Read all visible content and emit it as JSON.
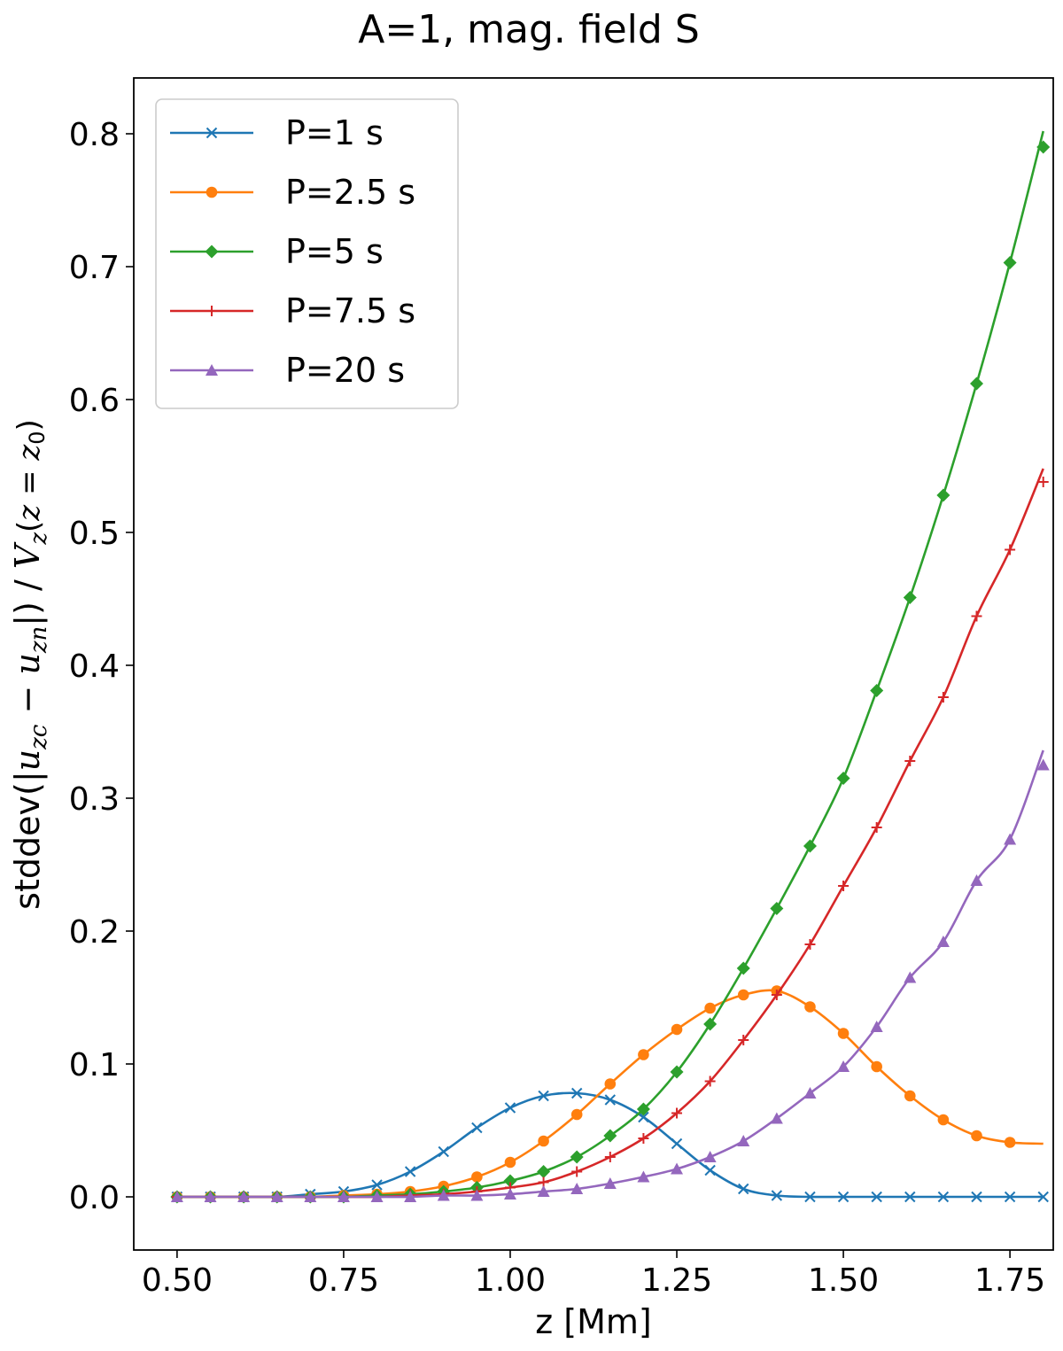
{
  "chart_data": {
    "type": "line",
    "title": "A=1, mag. field S",
    "xlabel": "z [Mm]",
    "ylabel": "stddev(|u_zc − u_zn|) / V_z(z=z0)",
    "ylabel_parts": {
      "prefix": "stddev(|",
      "u1": "u",
      "sub1": "zc",
      "minus": " − ",
      "u2": "u",
      "sub2": "zn",
      "mid": "|) / ",
      "V": "V",
      "subV": "z",
      "arg_open": "(",
      "z": "z",
      "eq": " = ",
      "z0": "z",
      "sub0": "0",
      "arg_close": ")"
    },
    "xlim": [
      0.435,
      1.815
    ],
    "ylim": [
      -0.04,
      0.842
    ],
    "xticks": [
      0.5,
      0.75,
      1.0,
      1.25,
      1.5,
      1.75
    ],
    "xtick_labels": [
      "0.50",
      "0.75",
      "1.00",
      "1.25",
      "1.50",
      "1.75"
    ],
    "yticks": [
      0.0,
      0.1,
      0.2,
      0.3,
      0.4,
      0.5,
      0.6,
      0.7,
      0.8
    ],
    "ytick_labels": [
      "0.0",
      "0.1",
      "0.2",
      "0.3",
      "0.4",
      "0.5",
      "0.6",
      "0.7",
      "0.8"
    ],
    "legend_position": "upper-left",
    "grid": false,
    "x": [
      0.5,
      0.55,
      0.6,
      0.65,
      0.7,
      0.75,
      0.8,
      0.85,
      0.9,
      0.95,
      1.0,
      1.05,
      1.1,
      1.15,
      1.2,
      1.25,
      1.3,
      1.35,
      1.4,
      1.45,
      1.5,
      1.55,
      1.6,
      1.65,
      1.7,
      1.75,
      1.8
    ],
    "series": [
      {
        "name": "P=1 s",
        "color": "#1f77b4",
        "marker": "x",
        "values": [
          0.0,
          0.0,
          0.0,
          0.0,
          0.002,
          0.004,
          0.009,
          0.019,
          0.034,
          0.052,
          0.067,
          0.076,
          0.078,
          0.073,
          0.06,
          0.04,
          0.02,
          0.006,
          0.001,
          0.0,
          0.0,
          0.0,
          0.0,
          0.0,
          0.0,
          0.0,
          0.0
        ],
        "marker_x": [
          0.5,
          0.55,
          0.6,
          0.65,
          0.7,
          0.75,
          0.8,
          0.85,
          0.9,
          0.95,
          1.0,
          1.05,
          1.1,
          1.15,
          1.2,
          1.25,
          1.3,
          1.35,
          1.4,
          1.45,
          1.5,
          1.55,
          1.6,
          1.65,
          1.7,
          1.75,
          1.8
        ],
        "marker_y": [
          0.0,
          0.0,
          0.0,
          0.0,
          0.002,
          0.004,
          0.009,
          0.019,
          0.034,
          0.052,
          0.067,
          0.076,
          0.078,
          0.073,
          0.06,
          0.04,
          0.02,
          0.006,
          0.001,
          0.0,
          0.0,
          0.0,
          0.0,
          0.0,
          0.0,
          0.0,
          0.0
        ]
      },
      {
        "name": "P=2.5 s",
        "color": "#ff7f0e",
        "marker": "o",
        "values": [
          0.0,
          0.0,
          0.0,
          0.0,
          0.0,
          0.001,
          0.002,
          0.004,
          0.008,
          0.015,
          0.026,
          0.042,
          0.062,
          0.085,
          0.107,
          0.126,
          0.142,
          0.152,
          0.155,
          0.143,
          0.123,
          0.098,
          0.076,
          0.058,
          0.046,
          0.041,
          0.04
        ],
        "marker_x": [
          0.5,
          0.55,
          0.6,
          0.65,
          0.7,
          0.75,
          0.8,
          0.85,
          0.9,
          0.95,
          1.0,
          1.05,
          1.1,
          1.15,
          1.2,
          1.25,
          1.3,
          1.35,
          1.4,
          1.45,
          1.5,
          1.55,
          1.6,
          1.65,
          1.7,
          1.75
        ],
        "marker_y": [
          0.0,
          0.0,
          0.0,
          0.0,
          0.0,
          0.001,
          0.002,
          0.004,
          0.008,
          0.015,
          0.026,
          0.042,
          0.062,
          0.085,
          0.107,
          0.126,
          0.142,
          0.152,
          0.155,
          0.143,
          0.123,
          0.098,
          0.076,
          0.058,
          0.046,
          0.041
        ]
      },
      {
        "name": "P=5 s",
        "color": "#2ca02c",
        "marker": "D",
        "values": [
          0.0,
          0.0,
          0.0,
          0.0,
          0.0,
          0.0,
          0.001,
          0.002,
          0.004,
          0.007,
          0.012,
          0.019,
          0.03,
          0.046,
          0.066,
          0.094,
          0.13,
          0.172,
          0.217,
          0.264,
          0.315,
          0.381,
          0.451,
          0.528,
          0.612,
          0.703,
          0.802
        ],
        "marker_x": [
          0.5,
          0.55,
          0.6,
          0.65,
          0.7,
          0.75,
          0.8,
          0.85,
          0.9,
          0.95,
          1.0,
          1.05,
          1.1,
          1.15,
          1.2,
          1.25,
          1.3,
          1.35,
          1.4,
          1.45,
          1.5,
          1.55,
          1.6,
          1.65,
          1.7,
          1.75,
          1.8
        ],
        "marker_y": [
          0.0,
          0.0,
          0.0,
          0.0,
          0.0,
          0.0,
          0.001,
          0.002,
          0.004,
          0.007,
          0.012,
          0.019,
          0.03,
          0.046,
          0.066,
          0.094,
          0.13,
          0.172,
          0.217,
          0.264,
          0.315,
          0.381,
          0.451,
          0.528,
          0.612,
          0.703,
          0.79
        ]
      },
      {
        "name": "P=7.5 s",
        "color": "#d62728",
        "marker": "+",
        "values": [
          0.0,
          0.0,
          0.0,
          0.0,
          0.0,
          0.0,
          0.0,
          0.001,
          0.002,
          0.004,
          0.007,
          0.011,
          0.019,
          0.03,
          0.044,
          0.063,
          0.087,
          0.118,
          0.152,
          0.19,
          0.234,
          0.278,
          0.328,
          0.376,
          0.437,
          0.487,
          0.548
        ],
        "marker_x": [
          0.5,
          0.55,
          0.6,
          0.65,
          0.7,
          0.75,
          0.8,
          0.85,
          0.9,
          0.95,
          1.0,
          1.05,
          1.1,
          1.15,
          1.2,
          1.25,
          1.3,
          1.35,
          1.4,
          1.45,
          1.5,
          1.55,
          1.6,
          1.65,
          1.7,
          1.75,
          1.8
        ],
        "marker_y": [
          0.0,
          0.0,
          0.0,
          0.0,
          0.0,
          0.0,
          0.0,
          0.001,
          0.002,
          0.004,
          0.007,
          0.011,
          0.019,
          0.03,
          0.044,
          0.063,
          0.087,
          0.118,
          0.152,
          0.19,
          0.234,
          0.278,
          0.328,
          0.376,
          0.437,
          0.487,
          0.538
        ]
      },
      {
        "name": "P=20 s",
        "color": "#9467bd",
        "marker": "^",
        "values": [
          0.0,
          0.0,
          0.0,
          0.0,
          0.0,
          0.0,
          0.0,
          0.0,
          0.001,
          0.001,
          0.002,
          0.004,
          0.006,
          0.01,
          0.015,
          0.021,
          0.03,
          0.042,
          0.059,
          0.078,
          0.098,
          0.128,
          0.165,
          0.192,
          0.238,
          0.269,
          0.336
        ],
        "marker_x": [
          0.5,
          0.55,
          0.6,
          0.65,
          0.7,
          0.75,
          0.8,
          0.85,
          0.9,
          0.95,
          1.0,
          1.05,
          1.1,
          1.15,
          1.2,
          1.25,
          1.3,
          1.35,
          1.4,
          1.45,
          1.5,
          1.55,
          1.6,
          1.65,
          1.7,
          1.75,
          1.8
        ],
        "marker_y": [
          0.0,
          0.0,
          0.0,
          0.0,
          0.0,
          0.0,
          0.0,
          0.0,
          0.001,
          0.001,
          0.002,
          0.004,
          0.006,
          0.01,
          0.015,
          0.021,
          0.03,
          0.042,
          0.059,
          0.078,
          0.098,
          0.128,
          0.165,
          0.192,
          0.238,
          0.269,
          0.325
        ]
      }
    ]
  }
}
